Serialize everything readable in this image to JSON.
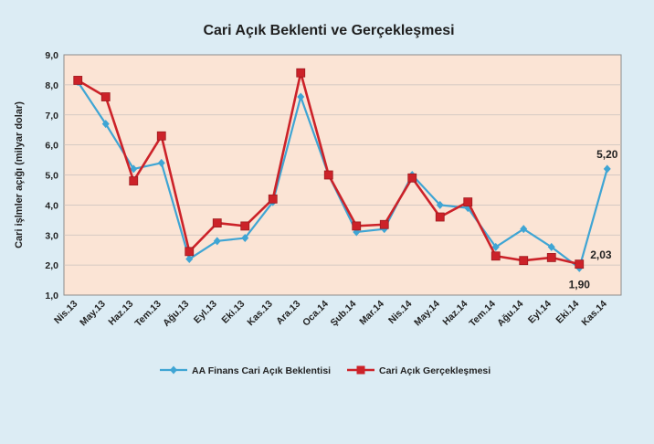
{
  "colors": {
    "background": "#dcecf4",
    "plot_background": "#fbe4d5",
    "grid": "#c9c1bd",
    "series_expectation": "#3fa5d4",
    "series_actual": "#cc2229"
  },
  "chart_data": {
    "type": "line",
    "title": "Cari Açık Beklenti ve Gerçekleşmesi",
    "xlabel": "",
    "ylabel": "Cari işlmler açığı (milyar dolar)",
    "ylim": [
      1.0,
      9.0
    ],
    "yticks": [
      "1,0",
      "2,0",
      "3,0",
      "4,0",
      "5,0",
      "6,0",
      "7,0",
      "8,0",
      "9,0"
    ],
    "grid": true,
    "legend_position": "bottom",
    "categories": [
      "Nis.13",
      "May.13",
      "Haz.13",
      "Tem.13",
      "Ağu.13",
      "Eyl.13",
      "Eki.13",
      "Kas.13",
      "Ara.13",
      "Oca.14",
      "Şub.14",
      "Mar.14",
      "Nis.14",
      "May.14",
      "Haz.14",
      "Tem.14",
      "Ağu.14",
      "Eyl.14",
      "Eki.14",
      "Kas.14"
    ],
    "series": [
      {
        "name": "AA Finans Cari Açık Beklentisi",
        "marker": "diamond",
        "color": "#3fa5d4",
        "values": [
          8.1,
          6.7,
          5.2,
          5.4,
          2.2,
          2.8,
          2.9,
          4.1,
          7.6,
          5.0,
          3.1,
          3.2,
          5.0,
          4.0,
          3.9,
          2.6,
          3.2,
          2.6,
          1.9,
          5.2
        ]
      },
      {
        "name": "Cari Açık Gerçekleşmesi",
        "marker": "square",
        "color": "#cc2229",
        "values": [
          8.15,
          7.6,
          4.8,
          6.3,
          2.45,
          3.4,
          3.3,
          4.2,
          8.4,
          5.0,
          3.3,
          3.35,
          4.9,
          3.6,
          4.1,
          2.3,
          2.15,
          2.25,
          2.03,
          null
        ]
      }
    ],
    "annotations": [
      {
        "text": "5,20",
        "series": 0,
        "index": 19
      },
      {
        "text": "2,03",
        "series": 1,
        "index": 18
      },
      {
        "text": "1,90",
        "series": 0,
        "index": 18
      }
    ]
  }
}
